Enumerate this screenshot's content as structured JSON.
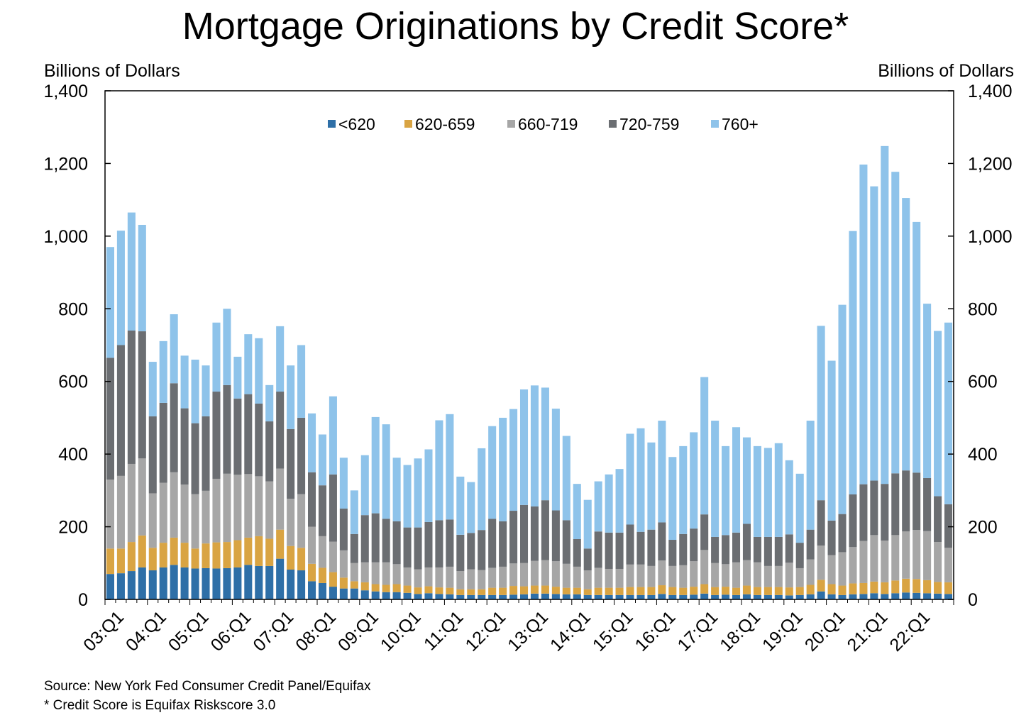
{
  "chart_data": {
    "type": "bar",
    "stacked": true,
    "title": "Mortgage Originations by Credit Score*",
    "ylabel_left": "Billions of Dollars",
    "ylabel_right": "Billions of Dollars",
    "ylim": [
      0,
      1400
    ],
    "yticks": [
      0,
      200,
      400,
      600,
      800,
      1000,
      1200,
      1400
    ],
    "ytick_labels": [
      "0",
      "200",
      "400",
      "600",
      "800",
      "1,000",
      "1,200",
      "1,400"
    ],
    "x_tick_labels": [
      "03:Q1",
      "04:Q1",
      "05:Q1",
      "06:Q1",
      "07:Q1",
      "08:Q1",
      "09:Q1",
      "10:Q1",
      "11:Q1",
      "12:Q1",
      "13:Q1",
      "14:Q1",
      "15:Q1",
      "16:Q1",
      "17:Q1",
      "18:Q1",
      "19:Q1",
      "20:Q1",
      "21:Q1",
      "22:Q1"
    ],
    "quarters_per_label": 4,
    "legend_position": "top-center",
    "grid": false,
    "series": [
      {
        "name": "<620",
        "color": "#2e6fa7",
        "values": [
          70,
          72,
          78,
          88,
          80,
          88,
          95,
          88,
          85,
          86,
          85,
          86,
          88,
          95,
          92,
          92,
          112,
          82,
          80,
          50,
          45,
          35,
          30,
          30,
          25,
          22,
          20,
          20,
          18,
          15,
          17,
          15,
          14,
          12,
          12,
          12,
          12,
          12,
          13,
          14,
          16,
          16,
          15,
          14,
          14,
          12,
          12,
          12,
          12,
          12,
          12,
          12,
          15,
          12,
          12,
          13,
          16,
          12,
          13,
          12,
          14,
          12,
          12,
          12,
          11,
          12,
          14,
          22,
          14,
          12,
          14,
          15,
          17,
          15,
          17,
          19,
          18,
          17,
          16,
          15
        ]
      },
      {
        "name": "620-659",
        "color": "#d9a443",
        "values": [
          70,
          68,
          80,
          88,
          62,
          68,
          75,
          68,
          55,
          68,
          72,
          72,
          75,
          75,
          82,
          75,
          80,
          65,
          62,
          48,
          42,
          40,
          30,
          20,
          22,
          20,
          20,
          22,
          20,
          18,
          19,
          18,
          18,
          16,
          16,
          16,
          20,
          20,
          24,
          22,
          22,
          22,
          20,
          18,
          18,
          16,
          20,
          20,
          20,
          22,
          22,
          22,
          24,
          22,
          20,
          22,
          26,
          22,
          22,
          20,
          24,
          22,
          22,
          22,
          22,
          22,
          26,
          32,
          28,
          26,
          30,
          30,
          32,
          32,
          35,
          38,
          38,
          36,
          32,
          32
        ]
      },
      {
        "name": "660-719",
        "color": "#a6a6a6",
        "values": [
          190,
          200,
          215,
          212,
          150,
          165,
          180,
          160,
          150,
          145,
          175,
          188,
          180,
          175,
          165,
          158,
          168,
          130,
          148,
          102,
          87,
          84,
          75,
          50,
          55,
          60,
          62,
          55,
          50,
          50,
          52,
          55,
          58,
          50,
          55,
          53,
          55,
          58,
          62,
          64,
          68,
          70,
          70,
          66,
          58,
          52,
          55,
          52,
          52,
          62,
          62,
          58,
          68,
          58,
          62,
          70,
          94,
          66,
          62,
          70,
          70,
          68,
          58,
          58,
          68,
          52,
          70,
          94,
          80,
          92,
          100,
          116,
          128,
          115,
          125,
          130,
          135,
          135,
          110,
          95
        ]
      },
      {
        "name": "720-759",
        "color": "#6b6e72",
        "values": [
          335,
          360,
          367,
          350,
          212,
          220,
          245,
          210,
          195,
          205,
          240,
          244,
          210,
          220,
          200,
          165,
          212,
          192,
          210,
          150,
          140,
          185,
          115,
          80,
          130,
          135,
          120,
          118,
          110,
          115,
          125,
          130,
          130,
          100,
          100,
          110,
          135,
          125,
          145,
          160,
          150,
          165,
          140,
          120,
          76,
          60,
          100,
          100,
          100,
          110,
          90,
          100,
          105,
          72,
          86,
          90,
          98,
          72,
          80,
          82,
          100,
          70,
          80,
          80,
          78,
          70,
          82,
          125,
          95,
          105,
          145,
          156,
          150,
          156,
          170,
          168,
          158,
          146,
          126,
          120
        ]
      },
      {
        "name": "760+",
        "color": "#8ec3ea",
        "values": [
          305,
          315,
          325,
          293,
          150,
          170,
          190,
          145,
          175,
          140,
          190,
          210,
          115,
          165,
          180,
          100,
          180,
          175,
          200,
          162,
          140,
          215,
          140,
          120,
          165,
          265,
          260,
          175,
          172,
          190,
          200,
          275,
          290,
          160,
          140,
          225,
          255,
          285,
          280,
          318,
          333,
          310,
          280,
          232,
          152,
          134,
          138,
          160,
          175,
          250,
          285,
          240,
          280,
          228,
          242,
          265,
          378,
          320,
          245,
          290,
          238,
          250,
          245,
          258,
          204,
          190,
          300,
          480,
          440,
          576,
          725,
          880,
          810,
          930,
          830,
          750,
          690,
          480,
          455,
          500
        ]
      }
    ]
  },
  "notes": {
    "source": "Source: New York Fed Consumer Credit Panel/Equifax",
    "footnote": "* Credit Score is Equifax Riskscore 3.0"
  }
}
